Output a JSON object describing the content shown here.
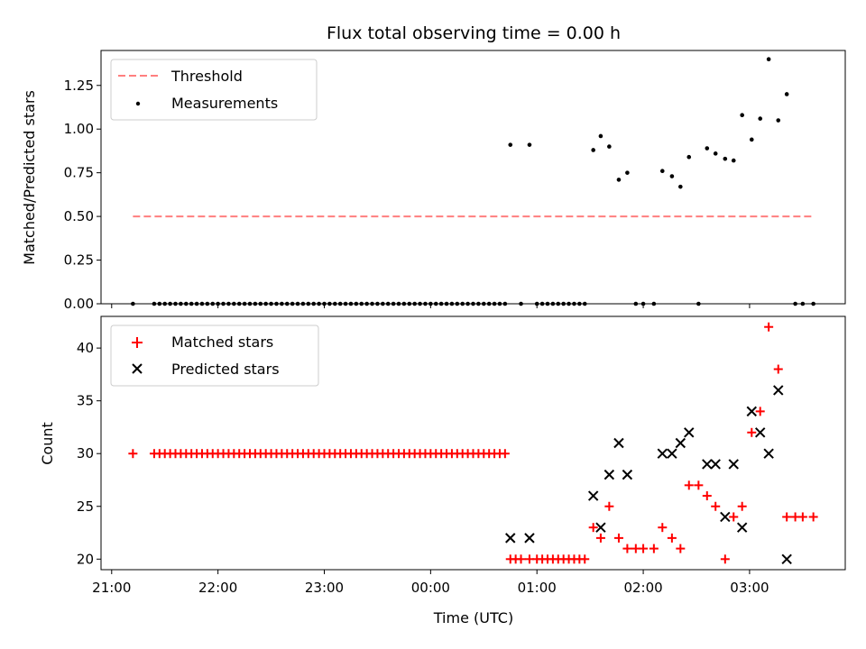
{
  "title": "Flux total observing time = 0.00 h",
  "colors": {
    "threshold": "#ff7f7f",
    "measurement": "#000000",
    "matched": "#ff0000",
    "predicted": "#000000"
  },
  "chart_data": [
    {
      "type": "scatter",
      "title": "Flux total observing time = 0.00 h",
      "xlabel": "",
      "ylabel": "Matched/Predicted stars",
      "x_unit": "hours since 21:00 UTC",
      "xlim": [
        -0.1,
        6.9
      ],
      "ylim": [
        0,
        1.45
      ],
      "yticks": [
        0.0,
        0.25,
        0.5,
        0.75,
        1.0,
        1.25
      ],
      "ytick_labels": [
        "0.00",
        "0.25",
        "0.50",
        "0.75",
        "1.00",
        "1.25"
      ],
      "legend": "top-left",
      "threshold": {
        "name": "Threshold",
        "value": 0.5,
        "x_range": [
          0.2,
          6.6
        ]
      },
      "series": [
        {
          "name": "Measurements",
          "points": [
            [
              0.2,
              0
            ],
            [
              0.4,
              0
            ],
            [
              0.45,
              0
            ],
            [
              0.5,
              0
            ],
            [
              0.55,
              0
            ],
            [
              0.6,
              0
            ],
            [
              0.65,
              0
            ],
            [
              0.7,
              0
            ],
            [
              0.75,
              0
            ],
            [
              0.8,
              0
            ],
            [
              0.85,
              0
            ],
            [
              0.9,
              0
            ],
            [
              0.95,
              0
            ],
            [
              1.0,
              0
            ],
            [
              1.05,
              0
            ],
            [
              1.1,
              0
            ],
            [
              1.15,
              0
            ],
            [
              1.2,
              0
            ],
            [
              1.25,
              0
            ],
            [
              1.3,
              0
            ],
            [
              1.35,
              0
            ],
            [
              1.4,
              0
            ],
            [
              1.45,
              0
            ],
            [
              1.5,
              0
            ],
            [
              1.55,
              0
            ],
            [
              1.6,
              0
            ],
            [
              1.65,
              0
            ],
            [
              1.7,
              0
            ],
            [
              1.75,
              0
            ],
            [
              1.8,
              0
            ],
            [
              1.85,
              0
            ],
            [
              1.9,
              0
            ],
            [
              1.95,
              0
            ],
            [
              2.0,
              0
            ],
            [
              2.05,
              0
            ],
            [
              2.1,
              0
            ],
            [
              2.15,
              0
            ],
            [
              2.2,
              0
            ],
            [
              2.25,
              0
            ],
            [
              2.3,
              0
            ],
            [
              2.35,
              0
            ],
            [
              2.4,
              0
            ],
            [
              2.45,
              0
            ],
            [
              2.5,
              0
            ],
            [
              2.55,
              0
            ],
            [
              2.6,
              0
            ],
            [
              2.65,
              0
            ],
            [
              2.7,
              0
            ],
            [
              2.75,
              0
            ],
            [
              2.8,
              0
            ],
            [
              2.85,
              0
            ],
            [
              2.9,
              0
            ],
            [
              2.95,
              0
            ],
            [
              3.0,
              0
            ],
            [
              3.05,
              0
            ],
            [
              3.1,
              0
            ],
            [
              3.15,
              0
            ],
            [
              3.2,
              0
            ],
            [
              3.25,
              0
            ],
            [
              3.3,
              0
            ],
            [
              3.35,
              0
            ],
            [
              3.4,
              0
            ],
            [
              3.45,
              0
            ],
            [
              3.5,
              0
            ],
            [
              3.55,
              0
            ],
            [
              3.6,
              0
            ],
            [
              3.65,
              0
            ],
            [
              3.7,
              0
            ],
            [
              3.75,
              0.91
            ],
            [
              3.85,
              0
            ],
            [
              3.93,
              0.91
            ],
            [
              4.0,
              0
            ],
            [
              4.05,
              0
            ],
            [
              4.1,
              0
            ],
            [
              4.15,
              0
            ],
            [
              4.2,
              0
            ],
            [
              4.25,
              0
            ],
            [
              4.3,
              0
            ],
            [
              4.35,
              0
            ],
            [
              4.4,
              0
            ],
            [
              4.45,
              0
            ],
            [
              4.53,
              0.88
            ],
            [
              4.6,
              0.96
            ],
            [
              4.68,
              0.9
            ],
            [
              4.77,
              0.71
            ],
            [
              4.85,
              0.75
            ],
            [
              4.93,
              0
            ],
            [
              5.0,
              0
            ],
            [
              5.1,
              0
            ],
            [
              5.18,
              0.76
            ],
            [
              5.27,
              0.73
            ],
            [
              5.35,
              0.67
            ],
            [
              5.43,
              0.84
            ],
            [
              5.52,
              0
            ],
            [
              5.6,
              0.89
            ],
            [
              5.68,
              0.86
            ],
            [
              5.77,
              0.83
            ],
            [
              5.85,
              0.82
            ],
            [
              5.93,
              1.08
            ],
            [
              6.02,
              0.94
            ],
            [
              6.1,
              1.06
            ],
            [
              6.18,
              1.4
            ],
            [
              6.27,
              1.05
            ],
            [
              6.35,
              1.2
            ],
            [
              6.43,
              0
            ],
            [
              6.5,
              0
            ],
            [
              6.6,
              0
            ]
          ]
        }
      ]
    },
    {
      "type": "scatter",
      "title": "",
      "xlabel": "Time (UTC)",
      "ylabel": "Count",
      "x_unit": "hours since 21:00 UTC",
      "xlim": [
        -0.1,
        6.9
      ],
      "ylim": [
        19,
        43
      ],
      "xticks": [
        0,
        1,
        2,
        3,
        4,
        5,
        6
      ],
      "xtick_labels": [
        "21:00",
        "22:00",
        "23:00",
        "00:00",
        "01:00",
        "02:00",
        "03:00"
      ],
      "yticks": [
        20,
        25,
        30,
        35,
        40
      ],
      "ytick_labels": [
        "20",
        "25",
        "30",
        "35",
        "40"
      ],
      "legend": "top-left",
      "series": [
        {
          "name": "Matched stars",
          "points": [
            [
              0.2,
              30
            ],
            [
              0.4,
              30
            ],
            [
              0.45,
              30
            ],
            [
              0.5,
              30
            ],
            [
              0.55,
              30
            ],
            [
              0.6,
              30
            ],
            [
              0.65,
              30
            ],
            [
              0.7,
              30
            ],
            [
              0.75,
              30
            ],
            [
              0.8,
              30
            ],
            [
              0.85,
              30
            ],
            [
              0.9,
              30
            ],
            [
              0.95,
              30
            ],
            [
              1.0,
              30
            ],
            [
              1.05,
              30
            ],
            [
              1.1,
              30
            ],
            [
              1.15,
              30
            ],
            [
              1.2,
              30
            ],
            [
              1.25,
              30
            ],
            [
              1.3,
              30
            ],
            [
              1.35,
              30
            ],
            [
              1.4,
              30
            ],
            [
              1.45,
              30
            ],
            [
              1.5,
              30
            ],
            [
              1.55,
              30
            ],
            [
              1.6,
              30
            ],
            [
              1.65,
              30
            ],
            [
              1.7,
              30
            ],
            [
              1.75,
              30
            ],
            [
              1.8,
              30
            ],
            [
              1.85,
              30
            ],
            [
              1.9,
              30
            ],
            [
              1.95,
              30
            ],
            [
              2.0,
              30
            ],
            [
              2.05,
              30
            ],
            [
              2.1,
              30
            ],
            [
              2.15,
              30
            ],
            [
              2.2,
              30
            ],
            [
              2.25,
              30
            ],
            [
              2.3,
              30
            ],
            [
              2.35,
              30
            ],
            [
              2.4,
              30
            ],
            [
              2.45,
              30
            ],
            [
              2.5,
              30
            ],
            [
              2.55,
              30
            ],
            [
              2.6,
              30
            ],
            [
              2.65,
              30
            ],
            [
              2.7,
              30
            ],
            [
              2.75,
              30
            ],
            [
              2.8,
              30
            ],
            [
              2.85,
              30
            ],
            [
              2.9,
              30
            ],
            [
              2.95,
              30
            ],
            [
              3.0,
              30
            ],
            [
              3.05,
              30
            ],
            [
              3.1,
              30
            ],
            [
              3.15,
              30
            ],
            [
              3.2,
              30
            ],
            [
              3.25,
              30
            ],
            [
              3.3,
              30
            ],
            [
              3.35,
              30
            ],
            [
              3.4,
              30
            ],
            [
              3.45,
              30
            ],
            [
              3.5,
              30
            ],
            [
              3.55,
              30
            ],
            [
              3.6,
              30
            ],
            [
              3.65,
              30
            ],
            [
              3.7,
              30
            ],
            [
              3.75,
              20
            ],
            [
              3.8,
              20
            ],
            [
              3.85,
              20
            ],
            [
              3.93,
              20
            ],
            [
              4.0,
              20
            ],
            [
              4.05,
              20
            ],
            [
              4.1,
              20
            ],
            [
              4.15,
              20
            ],
            [
              4.2,
              20
            ],
            [
              4.25,
              20
            ],
            [
              4.3,
              20
            ],
            [
              4.35,
              20
            ],
            [
              4.4,
              20
            ],
            [
              4.45,
              20
            ],
            [
              4.53,
              23
            ],
            [
              4.6,
              22
            ],
            [
              4.68,
              25
            ],
            [
              4.77,
              22
            ],
            [
              4.85,
              21
            ],
            [
              4.93,
              21
            ],
            [
              5.0,
              21
            ],
            [
              5.1,
              21
            ],
            [
              5.18,
              23
            ],
            [
              5.27,
              22
            ],
            [
              5.35,
              21
            ],
            [
              5.43,
              27
            ],
            [
              5.52,
              27
            ],
            [
              5.6,
              26
            ],
            [
              5.68,
              25
            ],
            [
              5.77,
              20
            ],
            [
              5.85,
              24
            ],
            [
              5.93,
              25
            ],
            [
              6.02,
              32
            ],
            [
              6.1,
              34
            ],
            [
              6.18,
              42
            ],
            [
              6.27,
              38
            ],
            [
              6.35,
              24
            ],
            [
              6.43,
              24
            ],
            [
              6.5,
              24
            ],
            [
              6.6,
              24
            ]
          ]
        },
        {
          "name": "Predicted stars",
          "points": [
            [
              3.75,
              22
            ],
            [
              3.93,
              22
            ],
            [
              4.53,
              26
            ],
            [
              4.6,
              23
            ],
            [
              4.68,
              28
            ],
            [
              4.77,
              31
            ],
            [
              4.85,
              28
            ],
            [
              5.18,
              30
            ],
            [
              5.27,
              30
            ],
            [
              5.35,
              31
            ],
            [
              5.43,
              32
            ],
            [
              5.6,
              29
            ],
            [
              5.68,
              29
            ],
            [
              5.77,
              24
            ],
            [
              5.85,
              29
            ],
            [
              5.93,
              23
            ],
            [
              6.02,
              34
            ],
            [
              6.1,
              32
            ],
            [
              6.18,
              30
            ],
            [
              6.27,
              36
            ],
            [
              6.35,
              20
            ]
          ]
        }
      ]
    }
  ]
}
